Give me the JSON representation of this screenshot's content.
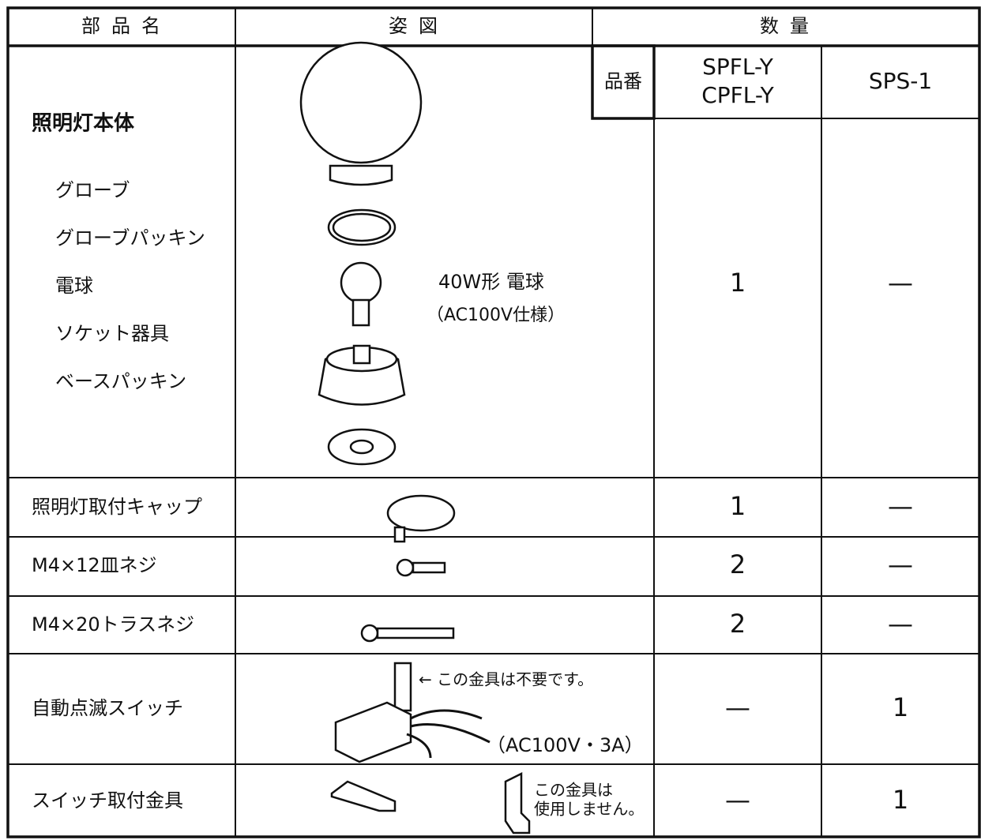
{
  "table": {
    "header": [
      "部品名",
      "姿図",
      "数量"
    ],
    "model_label": "品番",
    "models": [
      [
        "SPFL-Y",
        "CPFL-Y"
      ],
      [
        "SPS-1"
      ]
    ],
    "main": {
      "name": "照明灯本体",
      "components": [
        "グローブ",
        "グローブパッキン",
        "電球",
        "ソケット器具",
        "ベースパッキン"
      ],
      "notes": [
        "40W形 電球",
        "（AC100V仕様）"
      ],
      "quantities": [
        1,
        "—"
      ]
    },
    "rows": [
      {
        "name": "照明灯取付キャップ",
        "quantities": [
          1,
          "—"
        ]
      },
      {
        "name": "M4×12皿ネジ",
        "quantities": [
          2,
          "—"
        ]
      },
      {
        "name": "M4×20トラスネジ",
        "quantities": [
          2,
          "—"
        ]
      },
      {
        "name": "自動点滅スイッチ",
        "quantities": [
          "—",
          1
        ],
        "notes": [
          "← この金具は不要です。",
          "（AC100V・3A）"
        ]
      },
      {
        "name": "スイッチ取付金具",
        "quantities": [
          "—",
          1
        ],
        "notes": [
          "この金具は",
          "使用しません。"
        ]
      }
    ]
  }
}
